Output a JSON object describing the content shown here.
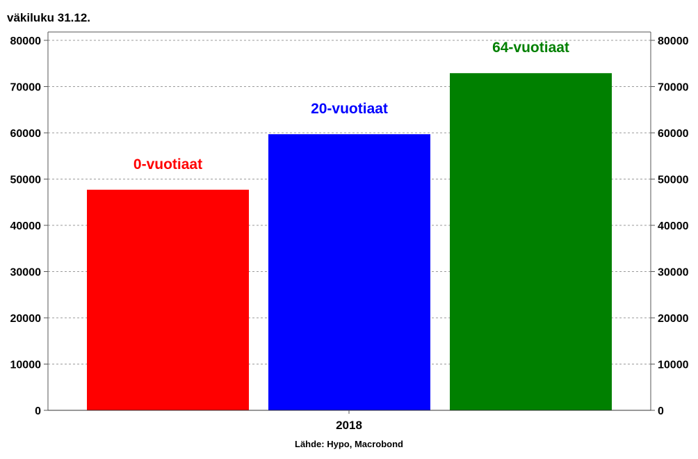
{
  "chart_data": {
    "type": "bar",
    "title": "väkiluku 31.12.",
    "source": "Lähde: Hypo, Macrobond",
    "categories": [
      "2018"
    ],
    "series": [
      {
        "name": "0-vuotiaat",
        "values": [
          47700
        ],
        "color": "#ff0000"
      },
      {
        "name": "20-vuotiaat",
        "values": [
          59700
        ],
        "color": "#0000ff"
      },
      {
        "name": "64-vuotiaat",
        "values": [
          72900
        ],
        "color": "#008000"
      }
    ],
    "ylim": [
      0,
      80000
    ],
    "yticks": [
      "0",
      "10000",
      "20000",
      "30000",
      "40000",
      "50000",
      "60000",
      "70000",
      "80000"
    ],
    "ytick_values": [
      0,
      10000,
      20000,
      30000,
      40000,
      50000,
      60000,
      70000,
      80000
    ],
    "y_axis_sides": [
      "left",
      "right"
    ],
    "grid": true,
    "grid_style": "dashed",
    "xlabel": "",
    "ylabel": ""
  }
}
